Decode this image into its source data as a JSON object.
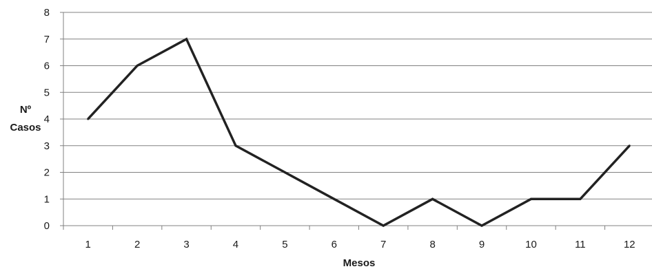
{
  "chart_data": {
    "type": "line",
    "xlabel": "Mesos",
    "ylabel_lines": [
      "Nº",
      "Casos"
    ],
    "categories": [
      "1",
      "2",
      "3",
      "4",
      "5",
      "6",
      "7",
      "8",
      "9",
      "10",
      "11",
      "12"
    ],
    "series": [
      {
        "values": [
          4,
          6,
          7,
          3,
          2,
          1,
          0,
          1,
          0,
          1,
          1,
          3
        ]
      }
    ],
    "ylim": [
      0,
      8
    ],
    "yticks": [
      0,
      1,
      2,
      3,
      4,
      5,
      6,
      7,
      8
    ],
    "grid": true,
    "legend": "none",
    "colors": {
      "line": "#222222",
      "grid": "#808080",
      "axis": "#808080",
      "text": "#1a1a1a"
    }
  }
}
